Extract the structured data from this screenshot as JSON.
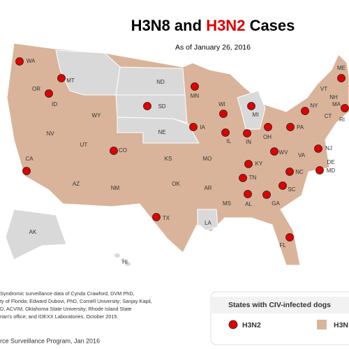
{
  "header": {
    "title": {
      "part1": "H3N8 and",
      "highlight": "H3N2",
      "part2": "Cases"
    },
    "subtitle": "As of January 26, 2016"
  },
  "map": {
    "land_color": "#d9b49a",
    "unaffected_color": "#d9d9d9",
    "dot_color": "#e00000",
    "states": [
      {
        "label": "WA",
        "h3n2": true
      },
      {
        "label": "OR",
        "h3n2": false
      },
      {
        "label": "ID",
        "h3n2": true
      },
      {
        "label": "MT",
        "h3n2": true
      },
      {
        "label": "WY",
        "h3n2": false
      },
      {
        "label": "ND",
        "h3n2": false
      },
      {
        "label": "SD",
        "h3n2": true
      },
      {
        "label": "NE",
        "h3n2": false
      },
      {
        "label": "MN",
        "h3n2": true
      },
      {
        "label": "WI",
        "h3n2": true
      },
      {
        "label": "MI",
        "h3n2": true
      },
      {
        "label": "IA",
        "h3n2": true
      },
      {
        "label": "IL",
        "h3n2": true
      },
      {
        "label": "IN",
        "h3n2": true
      },
      {
        "label": "OH",
        "h3n2": true
      },
      {
        "label": "PA",
        "h3n2": true
      },
      {
        "label": "NY",
        "h3n2": true
      },
      {
        "label": "VT",
        "h3n2": false
      },
      {
        "label": "NH",
        "h3n2": false
      },
      {
        "label": "ME",
        "h3n2": true
      },
      {
        "label": "MA",
        "h3n2": true
      },
      {
        "label": "RI",
        "h3n2": false
      },
      {
        "label": "CT",
        "h3n2": false
      },
      {
        "label": "NJ",
        "h3n2": true
      },
      {
        "label": "DE",
        "h3n2": false
      },
      {
        "label": "MD",
        "h3n2": true
      },
      {
        "label": "WV",
        "h3n2": true
      },
      {
        "label": "VA",
        "h3n2": false
      },
      {
        "label": "KY",
        "h3n2": true
      },
      {
        "label": "TN",
        "h3n2": true
      },
      {
        "label": "NC",
        "h3n2": true
      },
      {
        "label": "SC",
        "h3n2": true
      },
      {
        "label": "GA",
        "h3n2": true
      },
      {
        "label": "AL",
        "h3n2": true
      },
      {
        "label": "MS",
        "h3n2": false
      },
      {
        "label": "FL",
        "h3n2": true
      },
      {
        "label": "LA",
        "h3n2": false
      },
      {
        "label": "AR",
        "h3n2": false
      },
      {
        "label": "MO",
        "h3n2": false
      },
      {
        "label": "KS",
        "h3n2": false
      },
      {
        "label": "OK",
        "h3n2": false
      },
      {
        "label": "TX",
        "h3n2": true
      },
      {
        "label": "NM",
        "h3n2": false
      },
      {
        "label": "AZ",
        "h3n2": false
      },
      {
        "label": "CO",
        "h3n2": true
      },
      {
        "label": "UT",
        "h3n2": false
      },
      {
        "label": "NV",
        "h3n2": false
      },
      {
        "label": "CA",
        "h3n2": true
      },
      {
        "label": "AK",
        "h3n2": false
      },
      {
        "label": "HI",
        "h3n2": false
      }
    ]
  },
  "legend": {
    "title": "States with CIV-infected dogs",
    "items": [
      "H3N2",
      "H3N"
    ]
  },
  "footer": {
    "lines": [
      "Syndromic surveillance data of Cynda Crawford, DVM PhD,",
      "ty of Florida; Edward Dubovi, PhD, Cornell University; Sanjay Kapil,",
      "D, ACVIM, Oklahoma State University; Rhode Island State",
      "rian's office; and IDEXX Laboratories. October 2015."
    ],
    "source": "rce Surveillance Program, Jan 2016"
  }
}
